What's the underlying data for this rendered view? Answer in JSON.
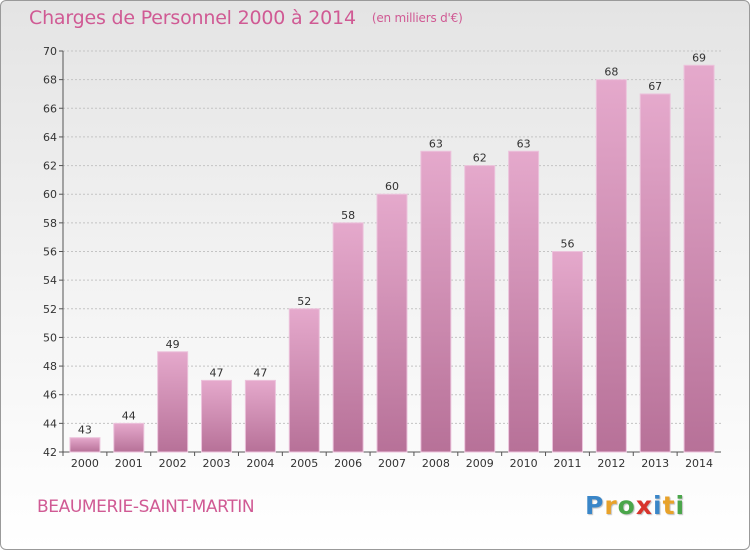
{
  "header": {
    "title": "Charges de Personnel 2000 à 2014",
    "unit": "(en milliers d'€)"
  },
  "footer": {
    "commune": "BEAUMERIE-SAINT-MARTIN",
    "logo_letters": [
      "P",
      "r",
      "o",
      "x",
      "i",
      "t",
      "i"
    ],
    "logo_colors": [
      "#3a86c8",
      "#e8a22a",
      "#4aa64a",
      "#d8342c",
      "#3a86c8",
      "#e8a22a",
      "#4aa64a"
    ]
  },
  "colors": {
    "bar_top": "#e5a9cc",
    "bar_bottom": "#b77198",
    "bar_side": "#ecc3dc",
    "title": "#d05a94"
  },
  "chart_data": {
    "type": "bar",
    "categories": [
      "2000",
      "2001",
      "2002",
      "2003",
      "2004",
      "2005",
      "2006",
      "2007",
      "2008",
      "2009",
      "2010",
      "2011",
      "2012",
      "2013",
      "2014"
    ],
    "values": [
      43,
      44,
      49,
      47,
      47,
      52,
      58,
      60,
      63,
      62,
      63,
      56,
      68,
      67,
      69
    ],
    "data_labels": [
      "43",
      "44",
      "49",
      "47",
      "47",
      "52",
      "58",
      "60",
      "63",
      "62",
      "63",
      "56",
      "68",
      "67",
      "69"
    ],
    "title": "Charges de Personnel 2000 à 2014",
    "ylim": [
      42,
      70
    ],
    "yticks": [
      42,
      44,
      46,
      48,
      50,
      52,
      54,
      56,
      58,
      60,
      62,
      64,
      66,
      68,
      70
    ],
    "grid": true,
    "legend": "none"
  }
}
